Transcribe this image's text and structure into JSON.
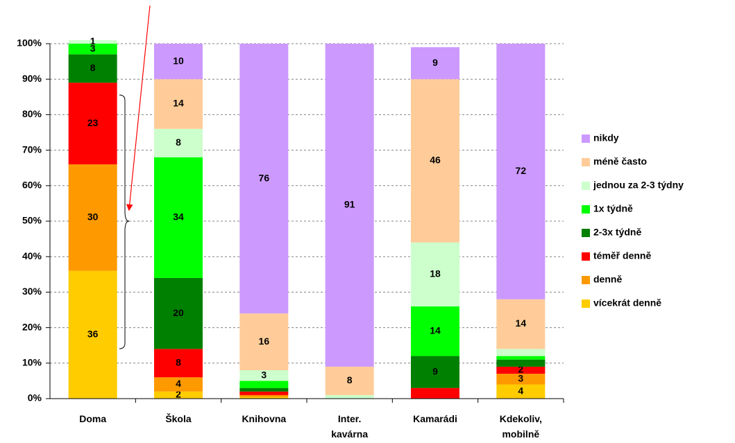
{
  "chart_data": {
    "type": "stacked_bar_100",
    "categories": [
      "Doma",
      "Škola",
      "Knihovna",
      "Inter.\nkavárna",
      "Kamarádi",
      "Kdekoliv,\nmobilně"
    ],
    "ylim": [
      0,
      100
    ],
    "yticks": [
      {
        "value": 0,
        "label": "0%"
      },
      {
        "value": 10,
        "label": "10%"
      },
      {
        "value": 20,
        "label": "20%"
      },
      {
        "value": 30,
        "label": "30%"
      },
      {
        "value": 40,
        "label": "40%"
      },
      {
        "value": 50,
        "label": "50%"
      },
      {
        "value": 60,
        "label": "60%"
      },
      {
        "value": 70,
        "label": "70%"
      },
      {
        "value": 80,
        "label": "80%"
      },
      {
        "value": 90,
        "label": "90%"
      },
      {
        "value": 100,
        "label": "100%"
      }
    ],
    "grid": true,
    "legend": "right",
    "series": [
      {
        "name": "vícekrát denně",
        "color": "#ffcc00",
        "values": [
          36,
          2,
          0.5,
          0,
          0,
          4
        ],
        "value_labels": [
          "36",
          "2",
          null,
          null,
          null,
          "4"
        ]
      },
      {
        "name": "denně",
        "color": "#ff9900",
        "values": [
          30,
          4,
          0.5,
          0,
          0,
          3
        ],
        "value_labels": [
          "30",
          "4",
          null,
          null,
          null,
          "3"
        ]
      },
      {
        "name": "téměř denně",
        "color": "#ff0000",
        "values": [
          23,
          8,
          1,
          0,
          3,
          2
        ],
        "value_labels": [
          "23",
          "8",
          null,
          null,
          null,
          "2"
        ]
      },
      {
        "name": "2-3x týdně",
        "color": "#008000",
        "values": [
          8,
          20,
          1,
          0,
          9,
          2
        ],
        "value_labels": [
          "8",
          "20",
          null,
          null,
          "9",
          null
        ]
      },
      {
        "name": "1x týdně",
        "color": "#00ff00",
        "values": [
          3,
          34,
          2,
          0,
          14,
          1
        ],
        "value_labels": [
          "3",
          "34",
          null,
          null,
          "14",
          null
        ]
      },
      {
        "name": "jednou za 2-3 týdny",
        "color": "#ccffcc",
        "values": [
          1,
          8,
          3,
          1,
          18,
          2
        ],
        "value_labels": [
          "1",
          "8",
          "3",
          null,
          "18",
          null
        ]
      },
      {
        "name": "méně často",
        "color": "#ffcc99",
        "values": [
          0,
          14,
          16,
          8,
          46,
          14
        ],
        "value_labels": [
          null,
          "14",
          "16",
          "8",
          "46",
          "14"
        ]
      },
      {
        "name": "nikdy",
        "color": "#cc99ff",
        "values": [
          0,
          10,
          76,
          91,
          9,
          72
        ],
        "value_labels": [
          null,
          "10",
          "76",
          "91",
          "9",
          "72"
        ]
      }
    ]
  }
}
